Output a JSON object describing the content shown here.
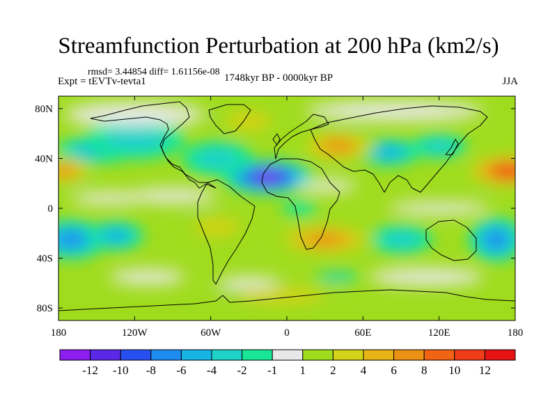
{
  "header": {
    "title": "Streamfunction Perturbation at 200 hPa (km2/s)",
    "rmsd_line": "rmsd= 3.44854 diff= 1.61156e-08",
    "experiment": "Expt = tEVTv-tevta1",
    "period": "1748kyr BP - 0000kyr BP",
    "season": "JJA"
  },
  "chart_data": {
    "type": "heatmap",
    "title": "Streamfunction Perturbation at 200 hPa (km2/s)",
    "projection": "cylindrical equidistant",
    "xlim": [
      -180,
      180
    ],
    "ylim": [
      -90,
      90
    ],
    "x_ticks": [
      {
        "value": -180,
        "label": "180"
      },
      {
        "value": -120,
        "label": "120W"
      },
      {
        "value": -60,
        "label": "60W"
      },
      {
        "value": 0,
        "label": "0"
      },
      {
        "value": 60,
        "label": "60E"
      },
      {
        "value": 120,
        "label": "120E"
      },
      {
        "value": 180,
        "label": "180"
      }
    ],
    "y_ticks": [
      {
        "value": 80,
        "label": "80N"
      },
      {
        "value": 40,
        "label": "40N"
      },
      {
        "value": 0,
        "label": "0"
      },
      {
        "value": -40,
        "label": "40S"
      },
      {
        "value": -80,
        "label": "80S"
      }
    ],
    "colorbar": {
      "levels": [
        "-12",
        "-10",
        "-8",
        "-6",
        "-4",
        "-2",
        "-1",
        "1",
        "2",
        "4",
        "6",
        "8",
        "10",
        "12"
      ],
      "colors": [
        "#8c1ef0",
        "#5a28e6",
        "#2850f0",
        "#1e8cf0",
        "#18b4e6",
        "#1ed2c8",
        "#19e696",
        "#e8e8e8",
        "#a0dc1e",
        "#d2d219",
        "#e6b414",
        "#ec9114",
        "#f06414",
        "#f03c19",
        "#e61414"
      ]
    },
    "anomalies": [
      {
        "lon": -15,
        "lat": 25,
        "value": -13,
        "rx": 36,
        "ry": 14
      },
      {
        "lon": -55,
        "lat": 40,
        "value": -3,
        "rx": 28,
        "ry": 14
      },
      {
        "lon": -150,
        "lat": 47,
        "value": -4,
        "rx": 32,
        "ry": 11
      },
      {
        "lon": -120,
        "lat": 55,
        "value": -2,
        "rx": 40,
        "ry": 16
      },
      {
        "lon": -170,
        "lat": -25,
        "value": -7,
        "rx": 28,
        "ry": 16
      },
      {
        "lon": -135,
        "lat": -22,
        "value": -5,
        "rx": 22,
        "ry": 12
      },
      {
        "lon": 80,
        "lat": 45,
        "value": -4,
        "rx": 25,
        "ry": 11
      },
      {
        "lon": 120,
        "lat": 50,
        "value": -3,
        "rx": 22,
        "ry": 10
      },
      {
        "lon": 165,
        "lat": -25,
        "value": -6,
        "rx": 22,
        "ry": 18
      },
      {
        "lon": 90,
        "lat": -25,
        "value": -2,
        "rx": 25,
        "ry": 12
      },
      {
        "lon": 10,
        "lat": 0,
        "value": -1,
        "rx": 14,
        "ry": 6
      },
      {
        "lon": 40,
        "lat": -55,
        "value": -2,
        "rx": 18,
        "ry": 4
      },
      {
        "lon": 175,
        "lat": 30,
        "value": 10,
        "rx": 35,
        "ry": 14
      },
      {
        "lon": -175,
        "lat": 30,
        "value": 7,
        "rx": 22,
        "ry": 11
      },
      {
        "lon": 30,
        "lat": -25,
        "value": 7,
        "rx": 40,
        "ry": 13
      },
      {
        "lon": 40,
        "lat": 50,
        "value": 6,
        "rx": 30,
        "ry": 13
      },
      {
        "lon": -55,
        "lat": -15,
        "value": 3,
        "rx": 28,
        "ry": 12
      },
      {
        "lon": -5,
        "lat": -70,
        "value": 2,
        "rx": 55,
        "ry": 10
      },
      {
        "lon": -30,
        "lat": 70,
        "value": 2,
        "rx": 28,
        "ry": 12
      }
    ]
  }
}
